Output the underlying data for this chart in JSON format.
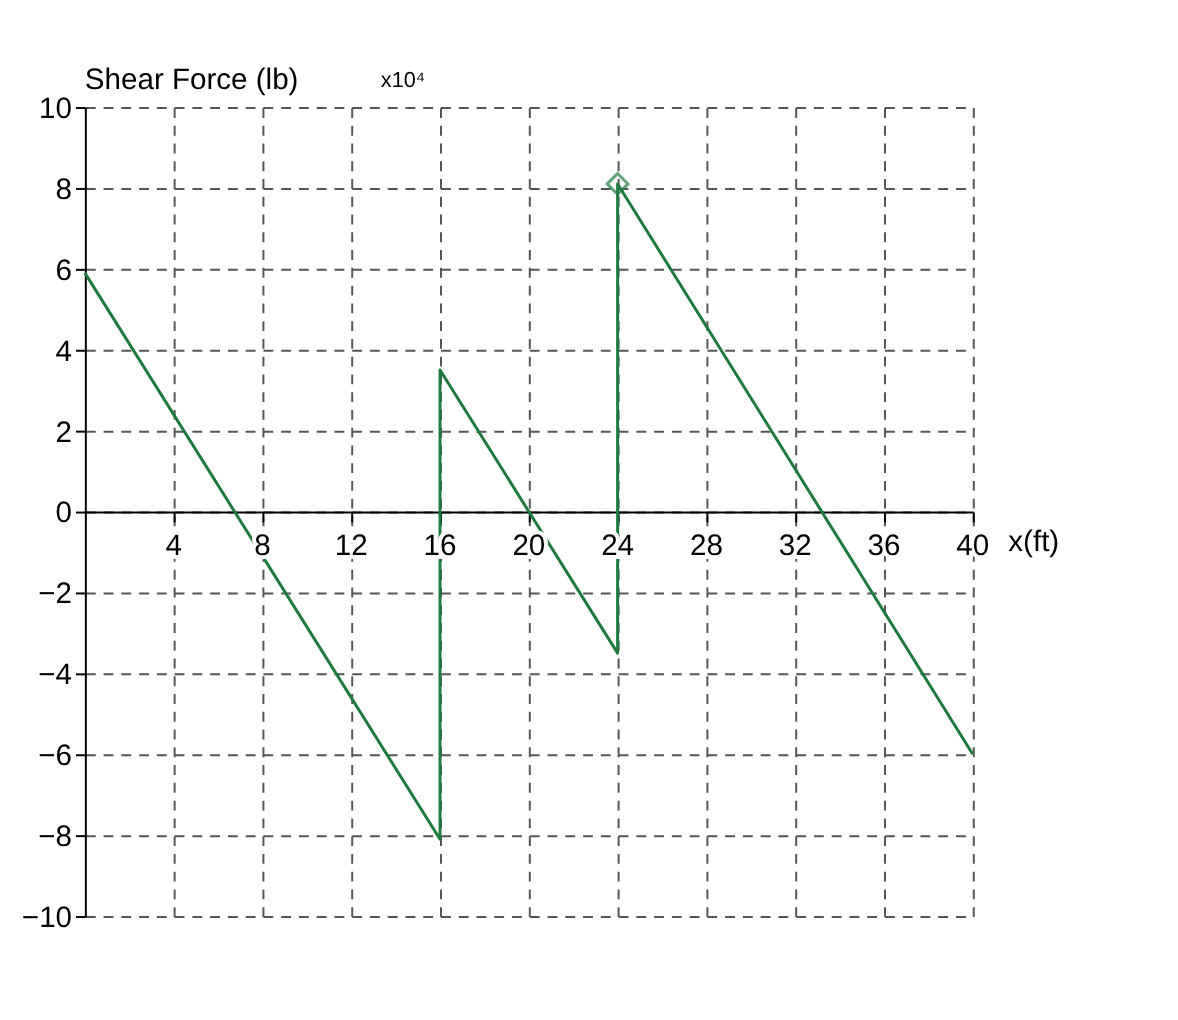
{
  "chart_data": {
    "type": "line",
    "ylabel": "Shear Force (lb)",
    "xlabel": "x(ft)",
    "annotations": [
      "x10⁴"
    ],
    "series": [
      {
        "color": "#1e7a3c",
        "x": [
          0,
          16,
          16,
          24,
          24,
          40
        ],
        "values": [
          5.9,
          -8.1,
          3.5,
          -3.5,
          8.1,
          -6.0
        ],
        "marker": "none"
      },
      {
        "type": "scatter",
        "color": "#1e7a3c",
        "x": [
          24
        ],
        "values": [
          8.1
        ],
        "marker": "diamond"
      }
    ],
    "xlim": [
      0,
      40
    ],
    "xticks": [
      4,
      8,
      12,
      16,
      20,
      24,
      28,
      32,
      36,
      40
    ],
    "ylim": [
      -10,
      10
    ],
    "yticks": [
      -10,
      -8,
      -6,
      -4,
      -2,
      0,
      2,
      4,
      6,
      8,
      10
    ],
    "grid": true,
    "line_style": "solid"
  }
}
